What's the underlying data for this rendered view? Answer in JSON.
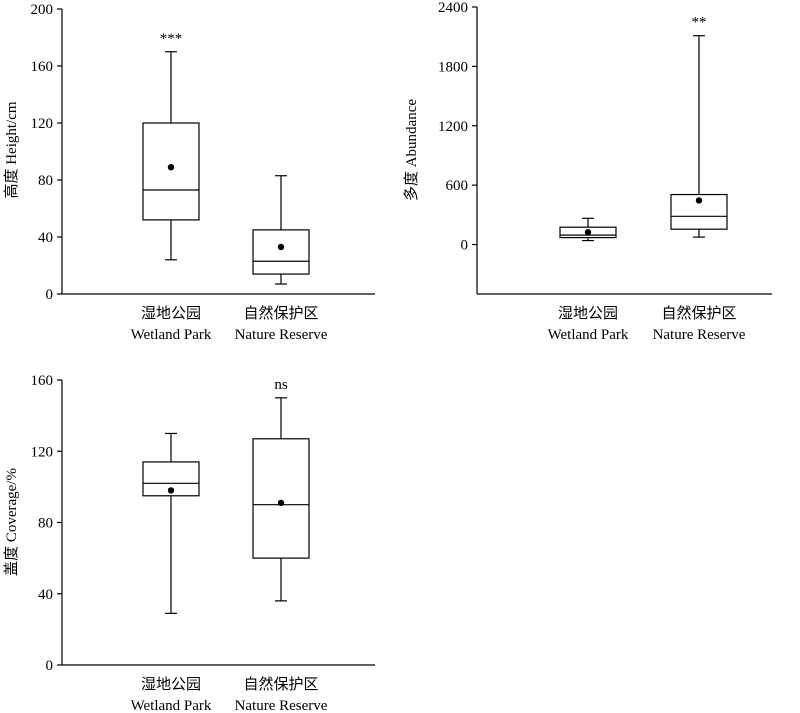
{
  "chart_data": [
    {
      "type": "box",
      "ylabel": "高度 Height/cm",
      "ylim": [
        0,
        200
      ],
      "yticks": [
        0,
        40,
        80,
        120,
        160,
        200
      ],
      "categories": [
        {
          "cn": "湿地公园",
          "en": "Wetland Park"
        },
        {
          "cn": "自然保护区",
          "en": "Nature Reserve"
        }
      ],
      "boxes": [
        {
          "min": 24,
          "q1": 52,
          "median": 73,
          "q3": 120,
          "max": 170,
          "mean": 89
        },
        {
          "min": 7,
          "q1": 14,
          "median": 23,
          "q3": 45,
          "max": 83,
          "mean": 33
        }
      ],
      "significance": "***",
      "significance_box": 0
    },
    {
      "type": "box",
      "ylabel": "多度 Abundance",
      "ylim": [
        -500,
        2400
      ],
      "yticks": [
        0,
        600,
        1200,
        1800,
        2400
      ],
      "categories": [
        {
          "cn": "湿地公园",
          "en": "Wetland Park"
        },
        {
          "cn": "自然保护区",
          "en": "Nature Reserve"
        }
      ],
      "boxes": [
        {
          "min": 40,
          "q1": 70,
          "median": 95,
          "q3": 175,
          "max": 265,
          "mean": 125
        },
        {
          "min": 75,
          "q1": 155,
          "median": 285,
          "q3": 505,
          "max": 2110,
          "mean": 445
        }
      ],
      "significance": "**",
      "significance_box": 1
    },
    {
      "type": "box",
      "ylabel": "盖度 Coverage/%",
      "ylim": [
        0,
        160
      ],
      "yticks": [
        0,
        40,
        80,
        120,
        160
      ],
      "categories": [
        {
          "cn": "湿地公园",
          "en": "Wetland Park"
        },
        {
          "cn": "自然保护区",
          "en": "Nature Reserve"
        }
      ],
      "boxes": [
        {
          "min": 29,
          "q1": 95,
          "median": 102,
          "q3": 114,
          "max": 130,
          "mean": 98
        },
        {
          "min": 36,
          "q1": 60,
          "median": 90,
          "q3": 127,
          "max": 150,
          "mean": 91
        }
      ],
      "significance": "ns",
      "significance_box": 1
    }
  ]
}
